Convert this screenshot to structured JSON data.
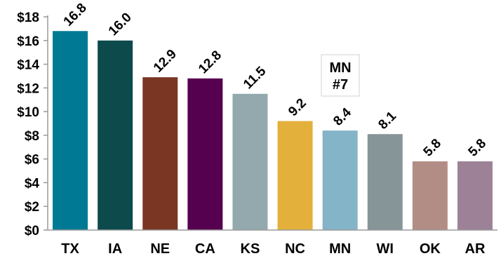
{
  "chart_data": {
    "type": "bar",
    "categories": [
      "TX",
      "IA",
      "NE",
      "CA",
      "KS",
      "NC",
      "MN",
      "WI",
      "OK",
      "AR"
    ],
    "values": [
      16.8,
      16.0,
      12.9,
      12.8,
      11.5,
      9.2,
      8.4,
      8.1,
      5.8,
      5.8
    ],
    "data_labels": [
      "16.8",
      "16.0",
      "12.9",
      "12.8",
      "11.5",
      "9.2",
      "8.4",
      "8.1",
      "5.8",
      "5.8"
    ],
    "colors": [
      "#007a94",
      "#0d4a4c",
      "#7a3622",
      "#560050",
      "#93a9ad",
      "#e3b03b",
      "#84b4c8",
      "#869597",
      "#b28d86",
      "#9d8297"
    ],
    "ylim": [
      0,
      18
    ],
    "yticks": [
      0,
      2,
      4,
      6,
      8,
      10,
      12,
      14,
      16,
      18
    ],
    "ytick_labels": [
      "$0",
      "$2",
      "$4",
      "$6",
      "$8",
      "$10",
      "$12",
      "$14",
      "$16",
      "$18"
    ],
    "grid": false,
    "title": "",
    "xlabel": "",
    "ylabel": ""
  },
  "callout": {
    "line1": "MN",
    "line2": "#7"
  }
}
